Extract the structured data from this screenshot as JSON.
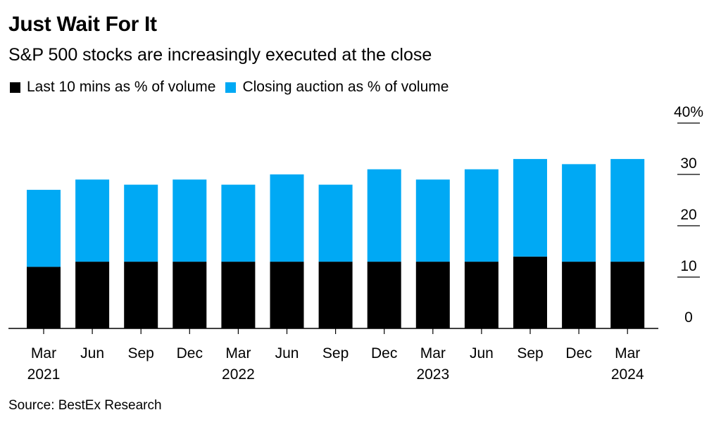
{
  "title": "Just Wait For It",
  "subtitle": "S&P 500 stocks are increasingly executed at the close",
  "source": "Source: BestEx Research",
  "legend": [
    {
      "name": "Last 10 mins as % of volume",
      "color": "#000000"
    },
    {
      "name": "Closing auction as % of volume",
      "color": "#00a9f4"
    }
  ],
  "chart_data": {
    "type": "bar",
    "stacked": true,
    "categories": [
      "Mar\n2021",
      "Jun",
      "Sep",
      "Dec",
      "Mar\n2022",
      "Jun",
      "Sep",
      "Dec",
      "Mar\n2023",
      "Jun",
      "Sep",
      "Dec",
      "Mar\n2024"
    ],
    "series": [
      {
        "name": "Last 10 mins as % of volume",
        "color": "#000000",
        "values": [
          12,
          13,
          13,
          13,
          13,
          13,
          13,
          13,
          13,
          13,
          14,
          13,
          13
        ]
      },
      {
        "name": "Closing auction as % of volume",
        "color": "#00a9f4",
        "values": [
          15,
          16,
          15,
          16,
          15,
          17,
          15,
          18,
          16,
          18,
          19,
          19,
          20
        ]
      }
    ],
    "ylim": [
      0,
      40
    ],
    "yticks": [
      0,
      10,
      20,
      30,
      40
    ],
    "ytick_labels": [
      "0",
      "10",
      "20",
      "30",
      "40%"
    ],
    "yaxis_side": "right",
    "grid": false,
    "legend_position": "top-left"
  }
}
